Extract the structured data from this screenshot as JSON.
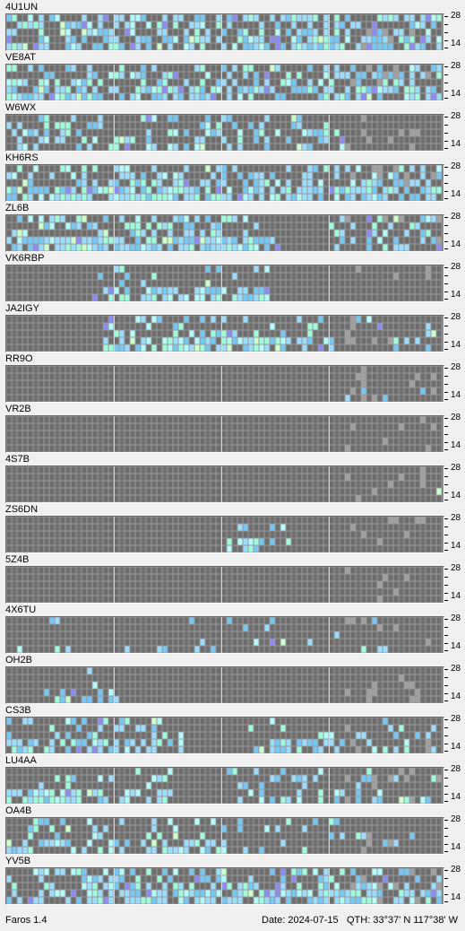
{
  "app": {
    "name": "Faros 1.4"
  },
  "status": {
    "date_text": "Date: 2024-07-15",
    "qth_text": "QTH: 33°37' N  117°38' W"
  },
  "scale": {
    "top_label": "28",
    "bottom_label": "14"
  },
  "colors": {
    "background": "#f0f0f0",
    "cell_empty": "#6e6e6e",
    "cell_gridline": "#9a9a9a",
    "cell_lightgray": "#a0a0a0",
    "hour_divider": "#d8d8d8",
    "signal_levels": [
      "#9cdcfc",
      "#76c8f4",
      "#9efcdc",
      "#b4fcfc",
      "#8c8cf4",
      "#ccffcc"
    ]
  },
  "beacons": [
    {
      "callsign": "4U1UN"
    },
    {
      "callsign": "VE8AT"
    },
    {
      "callsign": "W6WX"
    },
    {
      "callsign": "KH6RS"
    },
    {
      "callsign": "ZL6B"
    },
    {
      "callsign": "VK6RBP"
    },
    {
      "callsign": "JA2IGY"
    },
    {
      "callsign": "RR9O"
    },
    {
      "callsign": "VR2B"
    },
    {
      "callsign": "4S7B"
    },
    {
      "callsign": "ZS6DN"
    },
    {
      "callsign": "5Z4B"
    },
    {
      "callsign": "4X6TU"
    },
    {
      "callsign": "OH2B"
    },
    {
      "callsign": "CS3B"
    },
    {
      "callsign": "LU4AA"
    },
    {
      "callsign": "OA4B"
    },
    {
      "callsign": "YV5B"
    }
  ]
}
